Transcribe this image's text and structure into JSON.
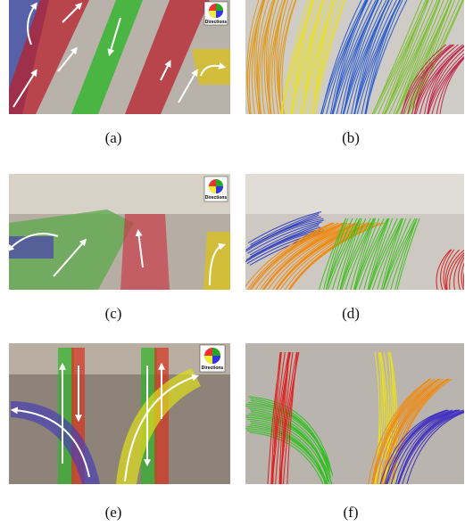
{
  "figure": {
    "panels": [
      {
        "label": "(a)",
        "legend": "Directions"
      },
      {
        "label": "(b)"
      },
      {
        "label": "(c)",
        "legend": "Directions"
      },
      {
        "label": "(d)"
      },
      {
        "label": "(e)",
        "legend": "Directions"
      },
      {
        "label": "(f)"
      }
    ]
  }
}
